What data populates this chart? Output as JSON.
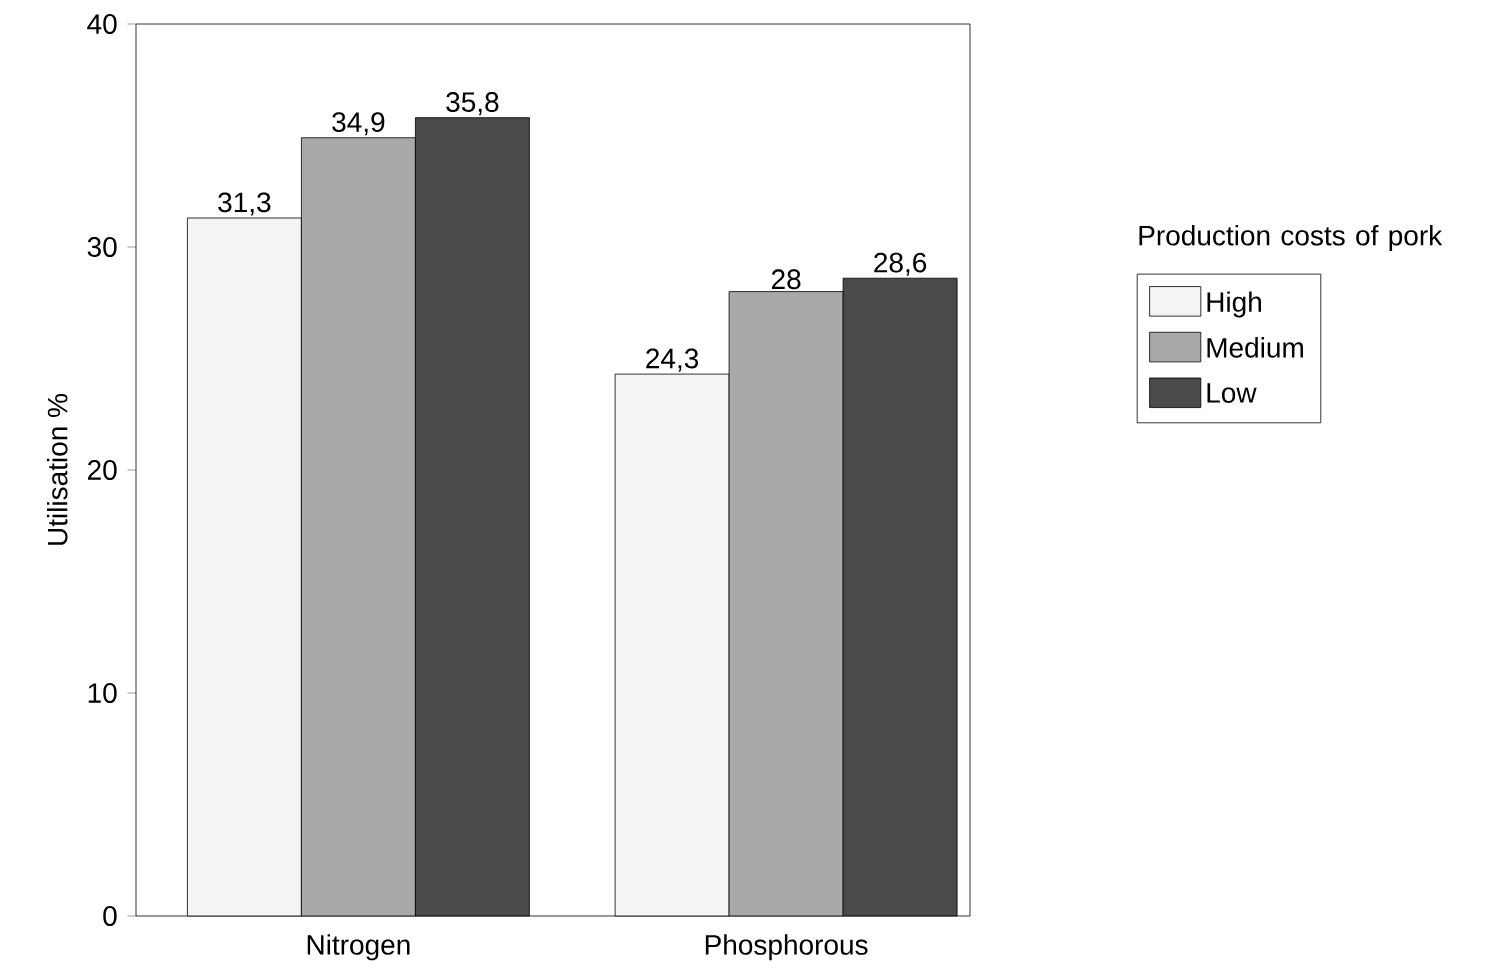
{
  "chart_data": {
    "type": "bar",
    "ylabel": "Utilisation %",
    "legend_title": "Production costs of pork",
    "categories": [
      "Nitrogen",
      "Phosphorous"
    ],
    "series": [
      {
        "name": "High",
        "color": "#f4f4f4",
        "values": [
          31.3,
          24.3
        ],
        "value_labels": [
          "31,3",
          "24,3"
        ]
      },
      {
        "name": "Medium",
        "color": "#a9a9a9",
        "values": [
          34.9,
          28
        ],
        "value_labels": [
          "34,9",
          "28"
        ]
      },
      {
        "name": "Low",
        "color": "#4a4a4a",
        "values": [
          35.8,
          28.6
        ],
        "value_labels": [
          "35,8",
          "28,6"
        ]
      }
    ],
    "ylim": [
      0,
      40
    ],
    "yticks": [
      0,
      10,
      20,
      30,
      40
    ],
    "grid": false,
    "legend": "right"
  }
}
